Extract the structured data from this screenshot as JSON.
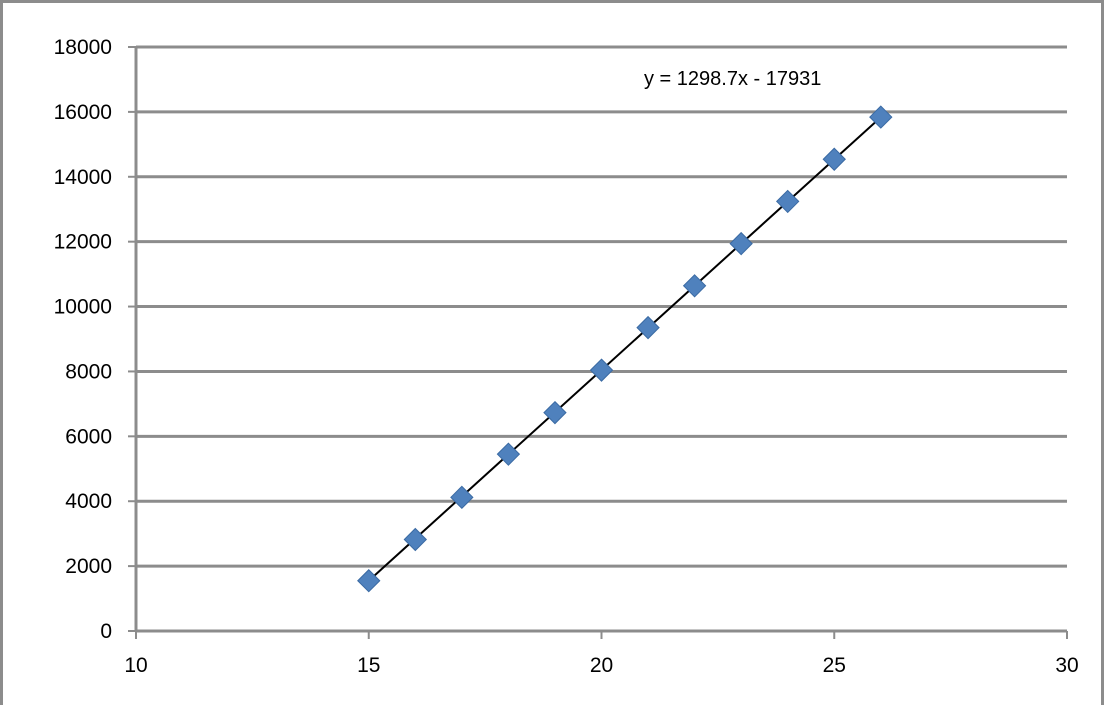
{
  "chart_data": {
    "type": "scatter",
    "title": "",
    "xlabel": "",
    "ylabel": "",
    "xlim": [
      10,
      30
    ],
    "ylim": [
      0,
      18000
    ],
    "x_ticks": [
      10,
      15,
      20,
      25,
      30
    ],
    "y_ticks": [
      0,
      2000,
      4000,
      6000,
      8000,
      10000,
      12000,
      14000,
      16000,
      18000
    ],
    "grid": "horizontal major gridlines",
    "legend": "none",
    "series": [
      {
        "marker": "diamond",
        "color": "#4f81bd",
        "x": [
          15,
          16,
          17,
          18,
          19,
          20,
          21,
          22,
          23,
          24,
          25,
          26
        ],
        "y": [
          1550,
          2820,
          4120,
          5450,
          6730,
          8040,
          9350,
          10640,
          11940,
          13240,
          14540,
          15840
        ]
      }
    ],
    "trendline": {
      "type": "linear",
      "slope": 1298.7,
      "intercept": -17931,
      "x_range": [
        15,
        26
      ],
      "color": "#000000",
      "equation_label": "y = 1298.7x - 17931"
    }
  }
}
